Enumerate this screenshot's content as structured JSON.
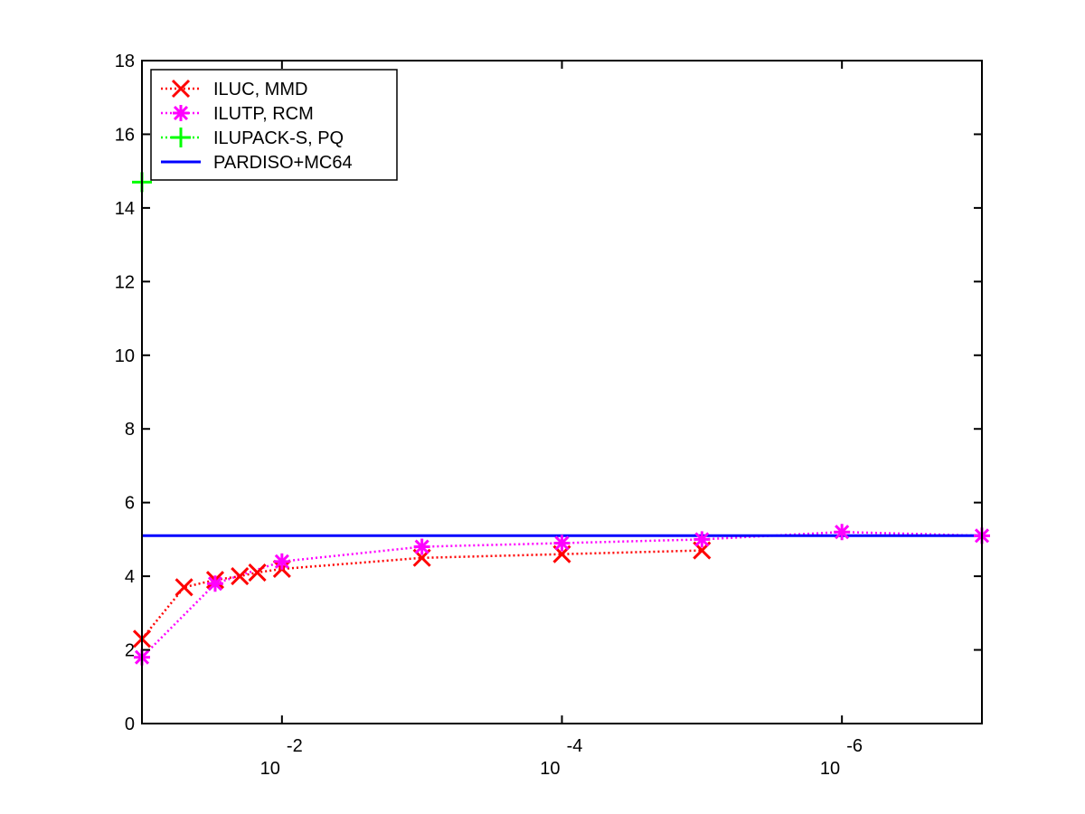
{
  "chart_data": {
    "type": "line",
    "title": "",
    "xlabel": "",
    "ylabel": "",
    "x_scale": "log",
    "x_reversed": true,
    "xlim": [
      0.1,
      1e-07
    ],
    "ylim": [
      0,
      18
    ],
    "y_ticks": [
      0,
      2,
      4,
      6,
      8,
      10,
      12,
      14,
      16,
      18
    ],
    "y_tick_labels": [
      "0",
      "2",
      "4",
      "6",
      "8",
      "10",
      "12",
      "14",
      "16",
      "18"
    ],
    "x_ticks": [
      0.01,
      0.0001,
      1e-06
    ],
    "x_tick_base": "10",
    "x_tick_exponents": [
      "-2",
      "-4",
      "-6"
    ],
    "grid": false,
    "legend_position": "top-left",
    "series": [
      {
        "name": "ILUC, MMD",
        "color": "#ff0000",
        "line_style": "dotted",
        "marker": "x",
        "x": [
          0.1,
          0.05,
          0.03,
          0.02,
          0.015,
          0.01,
          0.001,
          0.0001,
          1e-05
        ],
        "y": [
          2.3,
          3.7,
          3.9,
          4.0,
          4.1,
          4.2,
          4.5,
          4.6,
          4.7
        ]
      },
      {
        "name": "ILUTP, RCM",
        "color": "#ff00ff",
        "line_style": "dotted",
        "marker": "asterisk",
        "x": [
          0.1,
          0.03,
          0.01,
          0.001,
          0.0001,
          1e-05,
          1e-06,
          1e-07
        ],
        "y": [
          1.8,
          3.8,
          4.4,
          4.8,
          4.9,
          5.0,
          5.2,
          5.1
        ]
      },
      {
        "name": "ILUPACK-S, PQ",
        "color": "#00ff00",
        "line_style": "dotted",
        "marker": "plus",
        "x": [
          0.1
        ],
        "y": [
          14.7
        ]
      },
      {
        "name": "PARDISO+MC64",
        "color": "#0000ff",
        "line_style": "solid",
        "marker": "none",
        "x": [
          0.1,
          1e-07
        ],
        "y": [
          5.1,
          5.1
        ]
      }
    ]
  }
}
